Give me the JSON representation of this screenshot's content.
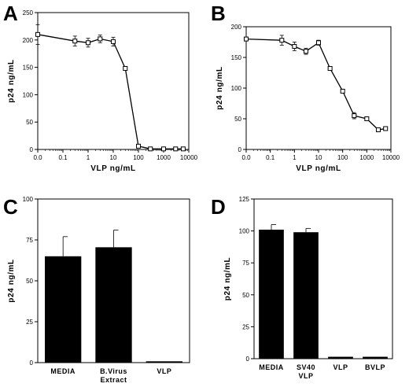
{
  "chart_data": [
    {
      "panel": "A",
      "type": "line",
      "xlabel": "VLP ng/mL",
      "ylabel": "p24 ng/mL",
      "xscale": "log",
      "xlim": [
        0.0,
        10000
      ],
      "ylim": [
        0,
        250
      ],
      "xticks": [
        "0.0",
        "0.1",
        "1",
        "10",
        "100",
        "1000",
        "10000"
      ],
      "yticks": [
        "0",
        "50",
        "100",
        "150",
        "200",
        "250"
      ],
      "x": [
        0.0,
        0.3,
        1,
        3,
        10,
        30,
        100,
        300,
        1000,
        3000,
        6000
      ],
      "y": [
        210,
        198,
        195,
        202,
        197,
        148,
        6,
        1,
        1,
        1,
        1
      ],
      "error": [
        18,
        9,
        8,
        7,
        8,
        0,
        0,
        0,
        0,
        0,
        0
      ],
      "marker": "open-square"
    },
    {
      "panel": "B",
      "type": "line",
      "xlabel": "VLP ng/mL",
      "ylabel": "p24 ng/mL",
      "xscale": "log",
      "xlim": [
        0.0,
        10000
      ],
      "ylim": [
        0,
        200
      ],
      "xticks": [
        "0.0",
        "0.1",
        "1",
        "10",
        "100",
        "1000",
        "10000"
      ],
      "yticks": [
        "0",
        "50",
        "100",
        "150",
        "200"
      ],
      "x": [
        0.0,
        0.3,
        1,
        3,
        10,
        30,
        100,
        300,
        1000,
        3000,
        6000
      ],
      "y": [
        180,
        178,
        168,
        160,
        174,
        132,
        95,
        55,
        50,
        32,
        34
      ],
      "error": [
        3,
        8,
        7,
        5,
        4,
        3,
        0,
        5,
        0,
        0,
        0
      ],
      "marker": "open-square"
    },
    {
      "panel": "C",
      "type": "bar",
      "ylabel": "p24 ng/mL",
      "ylim": [
        0,
        100
      ],
      "yticks": [
        "0",
        "25",
        "50",
        "75",
        "100"
      ],
      "categories": [
        [
          "MEDIA"
        ],
        [
          "B.Virus",
          "Extract"
        ],
        [
          "VLP"
        ]
      ],
      "values": [
        65,
        70.5,
        0.8
      ],
      "error": [
        12,
        10.5,
        0
      ]
    },
    {
      "panel": "D",
      "type": "bar",
      "ylabel": "p24 ng/mL",
      "ylim": [
        0,
        125
      ],
      "yticks": [
        "0",
        "25",
        "50",
        "75",
        "100",
        "125"
      ],
      "categories": [
        [
          "MEDIA"
        ],
        [
          "SV40",
          "VLP"
        ],
        [
          "VLP"
        ],
        [
          "BVLP"
        ]
      ],
      "values": [
        101,
        99,
        1.5,
        1.5
      ],
      "error": [
        4,
        3,
        0,
        0
      ]
    }
  ]
}
